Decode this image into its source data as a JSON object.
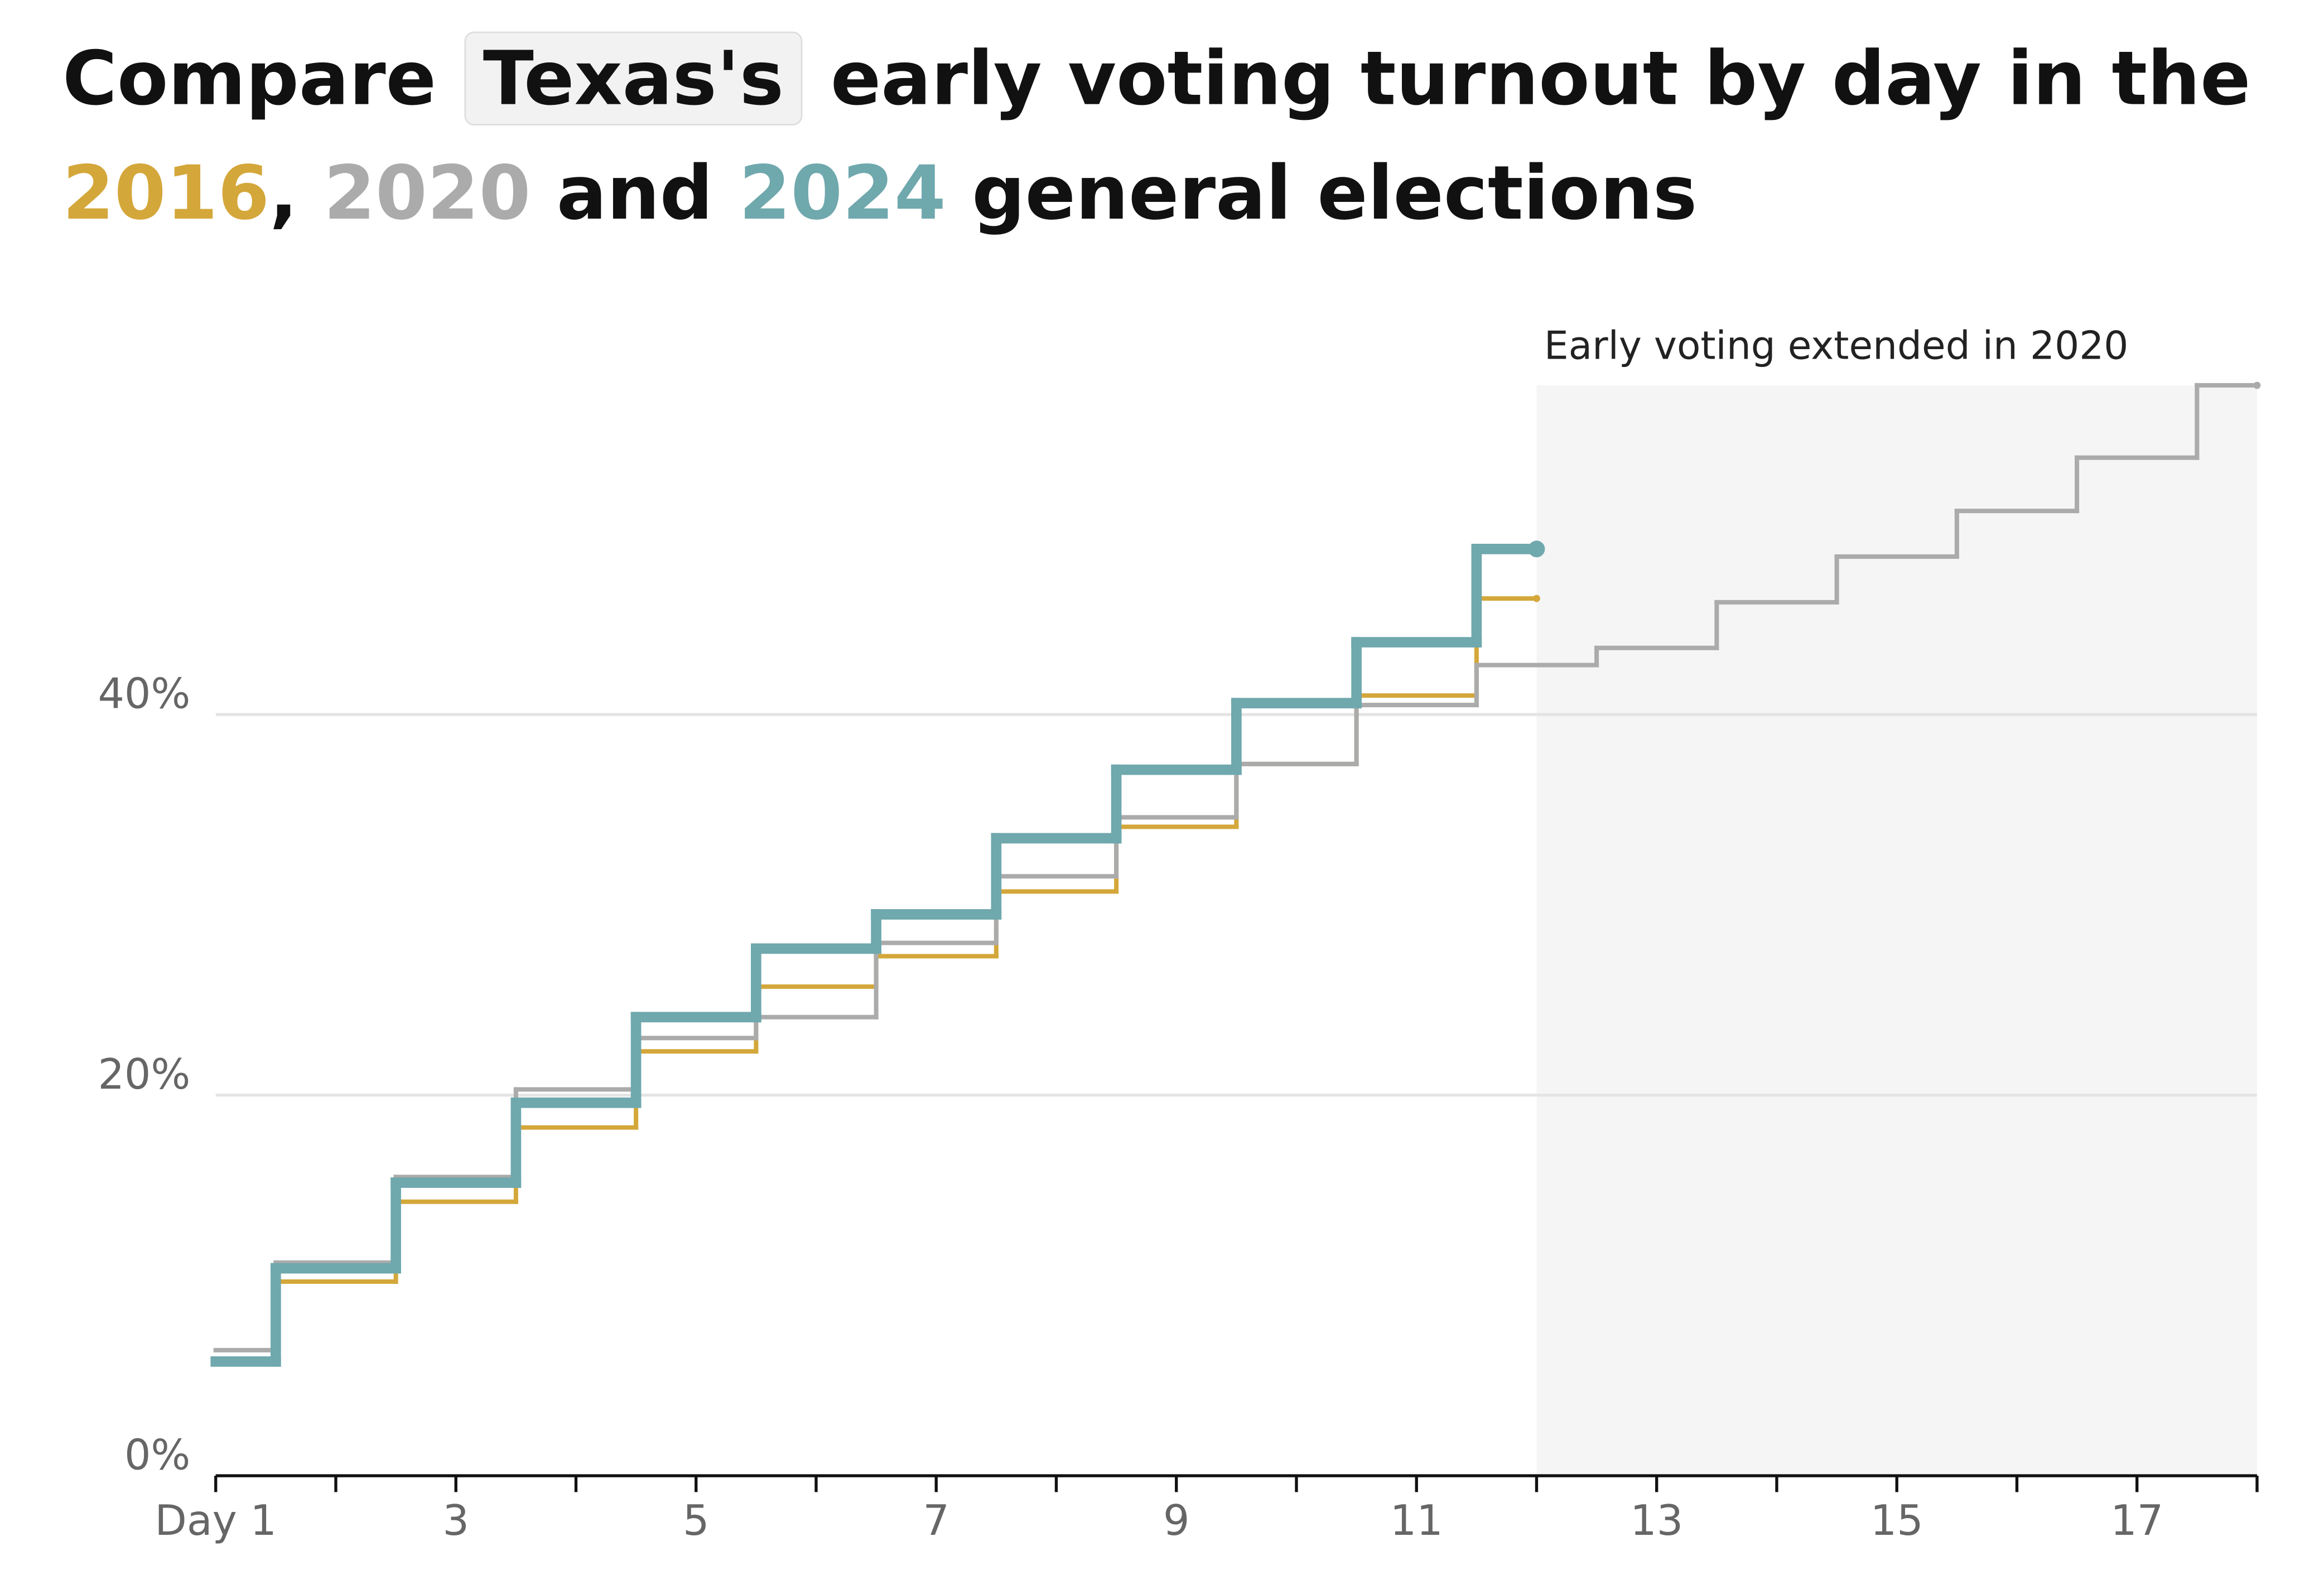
{
  "chart_data": {
    "type": "step",
    "title_parts": [
      "Compare",
      "Texas's",
      "early voting turnout by day in the",
      ",",
      "and",
      "general elections"
    ],
    "annotation": "Early voting extended in 2020",
    "shaded_range": [
      12,
      18
    ],
    "xlim": [
      1,
      18
    ],
    "xticks": [
      {
        "value": 1,
        "label": "Day 1"
      },
      3,
      5,
      7,
      9,
      11,
      13,
      15,
      17
    ],
    "xminor_ticks": [
      2,
      4,
      6,
      8,
      10,
      12,
      14,
      16,
      18
    ],
    "ylim": [
      0,
      58
    ],
    "yticks": [
      {
        "value": 0,
        "label": "0%"
      },
      {
        "value": 20,
        "label": "20%"
      },
      {
        "value": 40,
        "label": "40%"
      }
    ],
    "grid": true,
    "series": [
      {
        "name": "2016",
        "color": "#d4a73a",
        "width": 3,
        "x": [
          1,
          2,
          3,
          4,
          5,
          6,
          7,
          8,
          9,
          10,
          11,
          12
        ],
        "values": [
          6.0,
          10.2,
          14.4,
          18.3,
          22.3,
          25.7,
          27.3,
          30.7,
          34.1,
          37.4,
          41.0,
          46.1
        ]
      },
      {
        "name": "2020",
        "color": "#ababab",
        "width": 3,
        "x": [
          1,
          2,
          3,
          4,
          5,
          6,
          7,
          8,
          9,
          10,
          11,
          12,
          13,
          14,
          15,
          16,
          17,
          18
        ],
        "values": [
          6.6,
          11.2,
          15.7,
          20.3,
          23.0,
          24.1,
          28.0,
          31.5,
          34.6,
          37.4,
          40.5,
          42.6,
          43.5,
          45.9,
          48.3,
          50.7,
          53.5,
          57.3
        ]
      },
      {
        "name": "2024",
        "color": "#6fa8ad",
        "width": 7,
        "x": [
          1,
          2,
          3,
          4,
          5,
          6,
          7,
          8,
          9,
          10,
          11,
          12
        ],
        "values": [
          6.0,
          10.9,
          15.4,
          19.6,
          24.1,
          27.7,
          29.5,
          33.5,
          37.1,
          40.6,
          43.8,
          48.7
        ]
      }
    ]
  }
}
